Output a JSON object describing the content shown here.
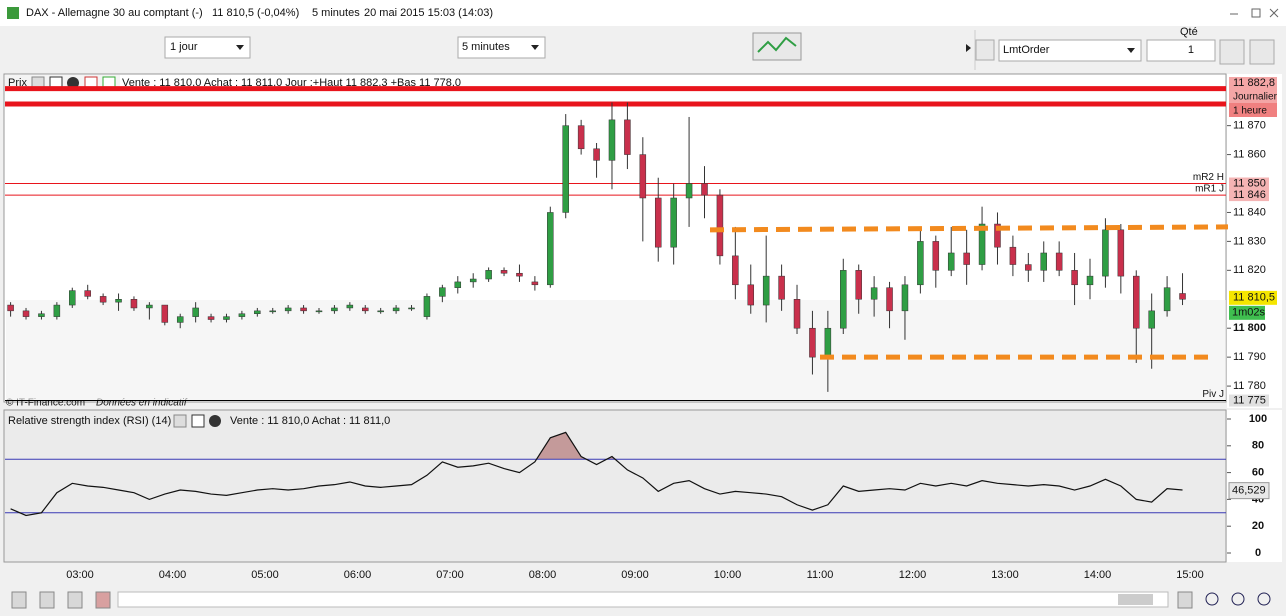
{
  "window": {
    "title": "DAX - Allemagne 30 au comptant (-)",
    "quote": "11 810,5 (-0,04%)",
    "interval": "5 minutes",
    "datetime": "20 mai 2015 15:03 (14:03)"
  },
  "toolbar": {
    "period": "1 jour",
    "interval": "5 minutes",
    "qty_label": "Qté",
    "order_type": "LmtOrder",
    "qty": "1"
  },
  "x_axis": {
    "labels": [
      "03:00",
      "04:00",
      "05:00",
      "06:00",
      "07:00",
      "08:00",
      "09:00",
      "10:00",
      "11:00",
      "12:00",
      "13:00",
      "14:00",
      "15:00"
    ]
  },
  "chart_data": [
    {
      "type": "candlestick",
      "title": "Prix",
      "info": "Vente : 11 810,0 Achat : 11 811,0 Jour :+Haut 11 882,3 +Bas 11 778,0",
      "up_color": "#2f9e44",
      "down_color": "#c9304c",
      "ylim": [
        11774.5,
        11887.5
      ],
      "yticks": [
        {
          "value": 11870,
          "label": "11 870"
        },
        {
          "value": 11860,
          "label": "11 860"
        },
        {
          "value": 11840,
          "label": "11 840"
        },
        {
          "value": 11830,
          "label": "11 830"
        },
        {
          "value": 11820,
          "label": "11 820"
        },
        {
          "value": 11800,
          "label": "11 800"
        },
        {
          "value": 11790,
          "label": "11 790"
        },
        {
          "value": 11780,
          "label": "11 780"
        }
      ],
      "candles": [
        [
          11808,
          11809,
          11804,
          11806
        ],
        [
          11806,
          11807,
          11803,
          11804
        ],
        [
          11804,
          11806,
          11803,
          11805
        ],
        [
          11804,
          11809,
          11803,
          11808
        ],
        [
          11808,
          11814,
          11807,
          11813
        ],
        [
          11813,
          11815,
          11810,
          11811
        ],
        [
          11811,
          11812,
          11808,
          11809
        ],
        [
          11809,
          11812,
          11806,
          11810
        ],
        [
          11810,
          11811,
          11806,
          11807
        ],
        [
          11807,
          11809,
          11803,
          11808
        ],
        [
          11808,
          11808,
          11801,
          11802
        ],
        [
          11802,
          11805,
          11800,
          11804
        ],
        [
          11804,
          11809,
          11802,
          11807
        ],
        [
          11804,
          11805,
          11802,
          11803
        ],
        [
          11803,
          11805,
          11802,
          11804
        ],
        [
          11804,
          11806,
          11803,
          11805
        ],
        [
          11805,
          11807,
          11804,
          11806
        ],
        [
          11806,
          11807,
          11805,
          11806
        ],
        [
          11806,
          11808,
          11805,
          11807
        ],
        [
          11807,
          11808,
          11805,
          11806
        ],
        [
          11806,
          11807,
          11805,
          11806
        ],
        [
          11806,
          11808,
          11805,
          11807
        ],
        [
          11807,
          11809,
          11806,
          11808
        ],
        [
          11807,
          11808,
          11805,
          11806
        ],
        [
          11806,
          11807,
          11805,
          11806
        ],
        [
          11806,
          11808,
          11805,
          11807
        ],
        [
          11807,
          11808,
          11806,
          11807
        ],
        [
          11804,
          11812,
          11803,
          11811
        ],
        [
          11811,
          11815,
          11809,
          11814
        ],
        [
          11814,
          11818,
          11812,
          11816
        ],
        [
          11816,
          11819,
          11814,
          11817
        ],
        [
          11817,
          11821,
          11816,
          11820
        ],
        [
          11820,
          11821,
          11818,
          11819
        ],
        [
          11819,
          11822,
          11816,
          11818
        ],
        [
          11816,
          11818,
          11813,
          11815
        ],
        [
          11815,
          11842,
          11814,
          11840
        ],
        [
          11840,
          11874,
          11838,
          11870
        ],
        [
          11870,
          11872,
          11860,
          11862
        ],
        [
          11862,
          11864,
          11852,
          11858
        ],
        [
          11858,
          11878,
          11848,
          11872
        ],
        [
          11872,
          11878,
          11855,
          11860
        ],
        [
          11860,
          11866,
          11830,
          11845
        ],
        [
          11845,
          11852,
          11823,
          11828
        ],
        [
          11828,
          11850,
          11822,
          11845
        ],
        [
          11845,
          11873,
          11835,
          11850
        ],
        [
          11850,
          11856,
          11838,
          11846
        ],
        [
          11846,
          11848,
          11822,
          11825
        ],
        [
          11825,
          11835,
          11810,
          11815
        ],
        [
          11815,
          11822,
          11805,
          11808
        ],
        [
          11808,
          11832,
          11802,
          11818
        ],
        [
          11818,
          11822,
          11806,
          11810
        ],
        [
          11810,
          11815,
          11798,
          11800
        ],
        [
          11800,
          11806,
          11784,
          11790
        ],
        [
          11790,
          11806,
          11778,
          11800
        ],
        [
          11800,
          11824,
          11798,
          11820
        ],
        [
          11820,
          11822,
          11805,
          11810
        ],
        [
          11810,
          11818,
          11804,
          11814
        ],
        [
          11814,
          11816,
          11800,
          11806
        ],
        [
          11806,
          11818,
          11796,
          11815
        ],
        [
          11815,
          11835,
          11812,
          11830
        ],
        [
          11830,
          11832,
          11814,
          11820
        ],
        [
          11820,
          11835,
          11818,
          11826
        ],
        [
          11826,
          11834,
          11815,
          11822
        ],
        [
          11822,
          11842,
          11820,
          11836
        ],
        [
          11836,
          11840,
          11822,
          11828
        ],
        [
          11828,
          11832,
          11818,
          11822
        ],
        [
          11822,
          11826,
          11816,
          11820
        ],
        [
          11820,
          11830,
          11816,
          11826
        ],
        [
          11826,
          11830,
          11818,
          11820
        ],
        [
          11820,
          11826,
          11808,
          11815
        ],
        [
          11815,
          11824,
          11810,
          11818
        ],
        [
          11818,
          11838,
          11814,
          11834
        ],
        [
          11834,
          11836,
          11812,
          11818
        ],
        [
          11818,
          11820,
          11788,
          11800
        ],
        [
          11800,
          11812,
          11786,
          11806
        ],
        [
          11806,
          11818,
          11804,
          11814
        ],
        [
          11812,
          11819,
          11808,
          11810
        ]
      ],
      "levels": [
        {
          "value": 11882.8,
          "label": "11 882,8",
          "name": "Journalier",
          "color": "#e8141c",
          "style": "thick"
        },
        {
          "value": 11877.5,
          "name": "1 heure",
          "color": "#e8141c",
          "style": "thick"
        },
        {
          "value": 11850,
          "label": "11 850",
          "name": "mR2 H",
          "color": "#e8141c",
          "style": "thin"
        },
        {
          "value": 11846,
          "label": "11 846",
          "name": "mR1 J",
          "color": "#e8141c",
          "style": "thin"
        },
        {
          "value": 11775,
          "label": "11 775",
          "name": "Piv J",
          "color": "#000000",
          "style": "thin"
        }
      ],
      "last": {
        "value": 11810.5,
        "label": "11 810,5"
      },
      "countdown": "1m02s",
      "trendlines": [
        [
          11834,
          11835
        ],
        [
          11790,
          11790
        ]
      ],
      "trend_color": "#f28a1e",
      "footer": "© IT-Finance.com",
      "footer_note": "Données en indicatif"
    },
    {
      "type": "line",
      "title": "Relative strength index (RSI) (14)",
      "info": "Vente : 11 810,0 Achat : 11 811,0",
      "color": "#111111",
      "ylim": [
        0,
        100
      ],
      "yticks": [
        0,
        20,
        40,
        60,
        80,
        100
      ],
      "levels": [
        70,
        30
      ],
      "level_color": "#3b3bb5",
      "overbought_color": "#c49a9a",
      "values": [
        33,
        28,
        30,
        45,
        52,
        50,
        49,
        47,
        45,
        40,
        44,
        47,
        46,
        44,
        43,
        45,
        47,
        48,
        47,
        48,
        50,
        51,
        53,
        50,
        49,
        50,
        51,
        58,
        68,
        64,
        65,
        67,
        63,
        60,
        68,
        86,
        90,
        72,
        66,
        72,
        62,
        56,
        46,
        52,
        54,
        48,
        44,
        46,
        45,
        44,
        42,
        36,
        32,
        36,
        50,
        46,
        47,
        48,
        47,
        52,
        50,
        52,
        50,
        54,
        52,
        51,
        50,
        51,
        50,
        47,
        50,
        55,
        50,
        40,
        38,
        48,
        47
      ],
      "last": {
        "value": 46.529,
        "label": "46,529"
      }
    }
  ]
}
